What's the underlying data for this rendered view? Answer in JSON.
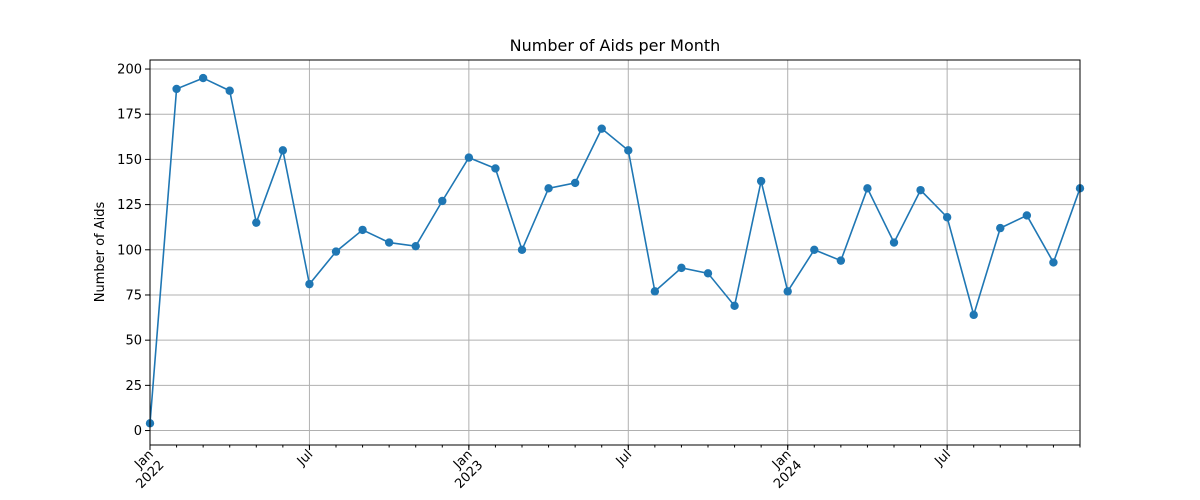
{
  "chart_data": {
    "type": "line",
    "title": "Number of Aids per Month",
    "xlabel": "",
    "ylabel": "Number of Aids",
    "ylim": [
      -8,
      205
    ],
    "xlim": [
      "2022-01",
      "2024-12"
    ],
    "yticks": [
      0,
      25,
      50,
      75,
      100,
      125,
      150,
      175,
      200
    ],
    "xticks": [
      {
        "month": "2022-01",
        "label": [
          "Jan",
          "2022"
        ]
      },
      {
        "month": "2022-07",
        "label": [
          "Jul"
        ]
      },
      {
        "month": "2023-01",
        "label": [
          "Jan",
          "2023"
        ]
      },
      {
        "month": "2023-07",
        "label": [
          "Jul"
        ]
      },
      {
        "month": "2024-01",
        "label": [
          "Jan",
          "2024"
        ]
      },
      {
        "month": "2024-07",
        "label": [
          "Jul"
        ]
      }
    ],
    "grid": true,
    "marker": "circle",
    "series": [
      {
        "color": "#1f77b4",
        "x": [
          "2022-01",
          "2022-02",
          "2022-03",
          "2022-04",
          "2022-05",
          "2022-06",
          "2022-07",
          "2022-08",
          "2022-09",
          "2022-10",
          "2022-11",
          "2022-12",
          "2023-01",
          "2023-02",
          "2023-03",
          "2023-04",
          "2023-05",
          "2023-06",
          "2023-07",
          "2023-08",
          "2023-09",
          "2023-10",
          "2023-11",
          "2023-12",
          "2024-01",
          "2024-02",
          "2024-03",
          "2024-04",
          "2024-05",
          "2024-06",
          "2024-07",
          "2024-08",
          "2024-09",
          "2024-10",
          "2024-11",
          "2024-12"
        ],
        "values": [
          4,
          189,
          195,
          188,
          115,
          155,
          81,
          99,
          111,
          104,
          102,
          127,
          151,
          145,
          100,
          134,
          137,
          167,
          155,
          77,
          90,
          87,
          69,
          138,
          77,
          100,
          94,
          134,
          104,
          133,
          118,
          64,
          112,
          119,
          93,
          134
        ]
      }
    ]
  }
}
